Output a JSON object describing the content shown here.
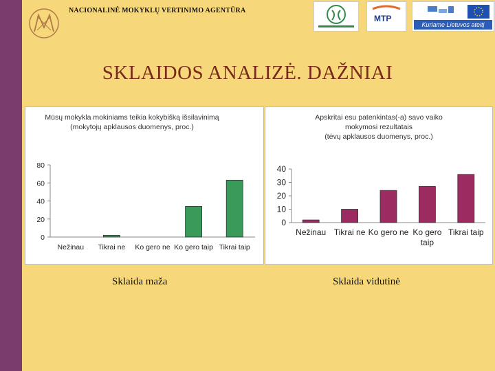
{
  "header": {
    "agency_name": "NACIONALINĖ MOKYKLŲ VERTINIMO AGENTŪRA",
    "slogan": "Kuriame Lietuvos ateitį",
    "mtp_label": "MTP",
    "colors": {
      "accent": "#7a3c6b",
      "background": "#f6d77a",
      "title": "#7a2a1a"
    }
  },
  "slide": {
    "title": "SKLAIDOS ANALIZĖ. DAŽNIAI"
  },
  "captions": {
    "left": "Sklaida maža",
    "right": "Sklaida vidutinė"
  },
  "chart_data": [
    {
      "type": "bar",
      "title": "Mūsų mokykla mokiniams teikia kokybišką išsilavinimą",
      "subtitle": "(mokytojų apklausos duomenys, proc.)",
      "categories": [
        "Nežinau",
        "Tikrai ne",
        "Ko gero ne",
        "Ko gero taip",
        "Tikrai taip"
      ],
      "values": [
        0,
        2,
        0,
        34,
        63
      ],
      "ylim": [
        0,
        80
      ],
      "yticks": [
        0,
        20,
        40,
        60,
        80
      ],
      "color": "#3a9a5a",
      "grid": false
    },
    {
      "type": "bar",
      "title": "Apskritai esu patenkintas(-a) savo vaiko",
      "subtitle": "mokymosi rezultatais",
      "subtitle2": "(tėvų apklausos duomenys, proc.)",
      "categories": [
        "Nežinau",
        "Tikrai ne",
        "Ko gero ne",
        "Ko gero taip",
        "Tikrai taip"
      ],
      "values": [
        2,
        10,
        24,
        27,
        36
      ],
      "ylim": [
        0,
        40
      ],
      "yticks": [
        0,
        10,
        20,
        30,
        40
      ],
      "color": "#9c2b62",
      "grid": false
    }
  ]
}
